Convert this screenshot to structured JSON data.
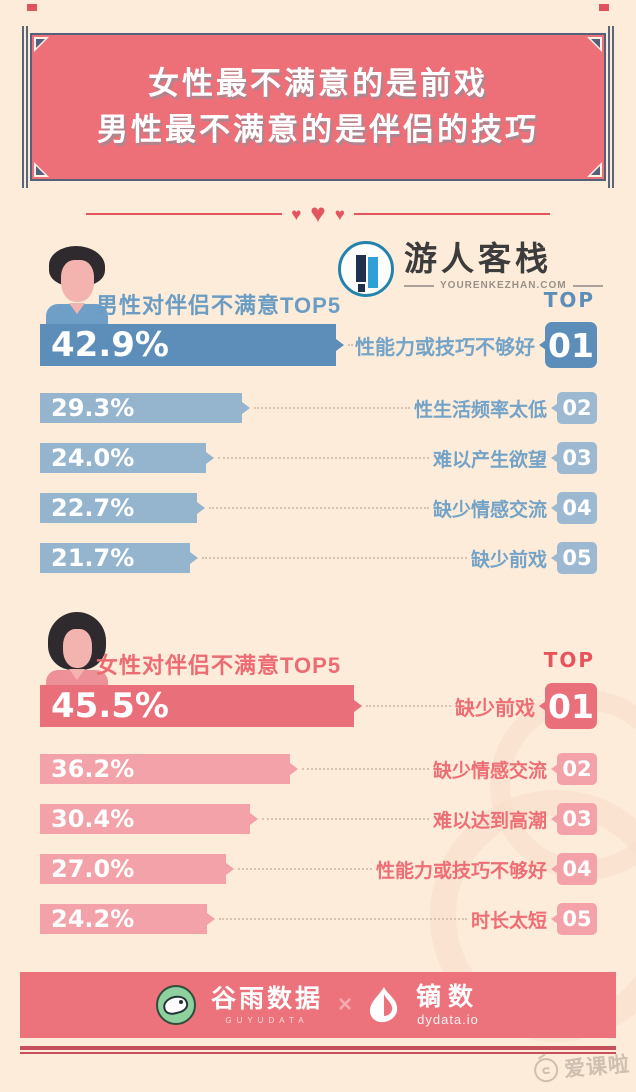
{
  "header": {
    "title_line1": "女性最不满意的是前戏",
    "title_line2": "男性最不满意的是伴侣的技巧"
  },
  "divider": {
    "heart": "♥"
  },
  "brand": {
    "name": "游人客栈",
    "domain": "YOURENKEZHAN.COM"
  },
  "chart_data": [
    {
      "type": "bar",
      "title": "男性对伴侣不满意TOP5",
      "top_label": "TOP",
      "categories": [
        "性能力或技巧不够好",
        "性生活频率太低",
        "难以产生欲望",
        "缺少情感交流",
        "缺少前戏"
      ],
      "values": [
        42.9,
        29.3,
        24.0,
        22.7,
        21.7
      ],
      "value_labels": [
        "42.9%",
        "29.3%",
        "24.0%",
        "22.7%",
        "21.7%"
      ],
      "ranks": [
        "01",
        "02",
        "03",
        "04",
        "05"
      ],
      "xlim": [
        0,
        50
      ],
      "colors": {
        "bar_primary": "#5d8eb9",
        "bar_secondary": "#95b4ce",
        "badge_primary": "#5d8eb9",
        "badge_secondary": "#9cb9d1",
        "label": "#74a3c8",
        "title": "#6b9dc4",
        "top": "#5d8eb9"
      }
    },
    {
      "type": "bar",
      "title": "女性对伴侣不满意TOP5",
      "top_label": "TOP",
      "categories": [
        "缺少前戏",
        "缺少情感交流",
        "难以达到高潮",
        "性能力或技巧不够好",
        "时长太短"
      ],
      "values": [
        45.5,
        36.2,
        30.4,
        27.0,
        24.2
      ],
      "value_labels": [
        "45.5%",
        "36.2%",
        "30.4%",
        "27.0%",
        "24.2%"
      ],
      "ranks": [
        "01",
        "02",
        "03",
        "04",
        "05"
      ],
      "xlim": [
        0,
        50
      ],
      "colors": {
        "bar_primary": "#e9707a",
        "bar_secondary": "#f2a2a8",
        "badge_primary": "#e9707a",
        "badge_secondary": "#f2a2a8",
        "label": "#ee6e76",
        "title": "#ed6b73",
        "top": "#e8545e"
      }
    }
  ],
  "footer": {
    "brand1_name": "谷雨数据",
    "brand1_sub": "GUYUDATA",
    "separator": "×",
    "brand2_name": "镝数",
    "brand2_sub": "dydata.io"
  },
  "watermark": {
    "text": "爱课啦"
  }
}
